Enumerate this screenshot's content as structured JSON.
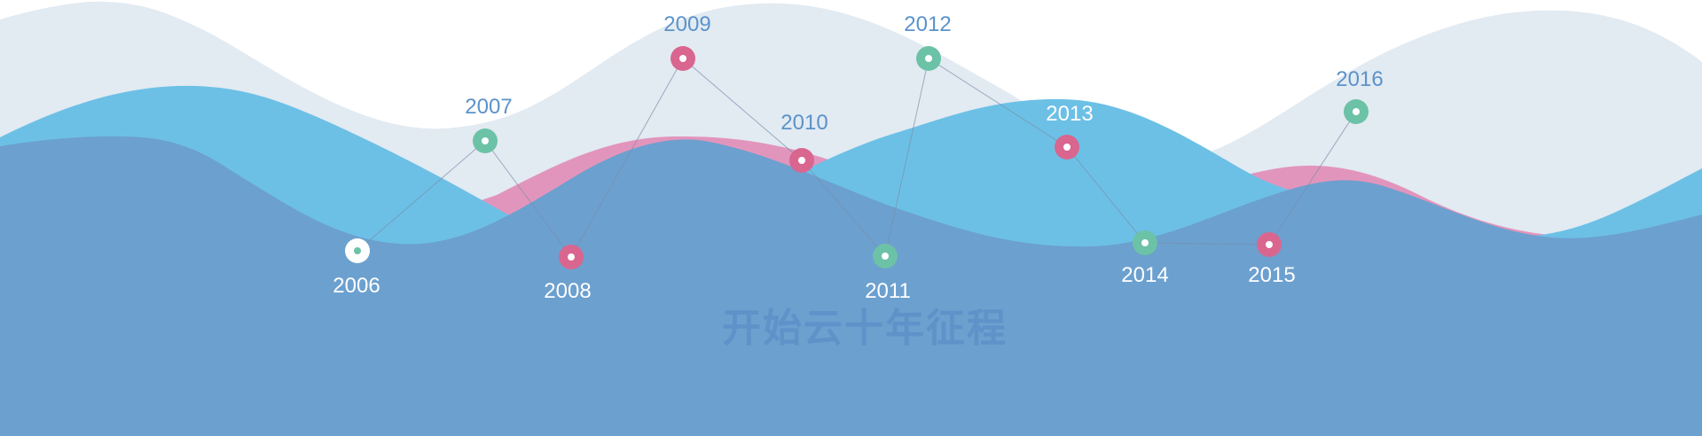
{
  "colors": {
    "background": "#ffffff",
    "wave_back": "#e2eaf2",
    "wave_cyan": "#6cc0e6",
    "wave_pink": "#e295bc",
    "wave_front": "#6ca0cf",
    "marker_green": "#6cc2a6",
    "marker_pink": "#d9668f",
    "marker_white": "#ffffff",
    "connector": "#7a8fa8",
    "label_on_light": "#5b93c9",
    "label_on_dark": "#ffffff"
  },
  "watermark": "开始云十年征程",
  "milestones": [
    {
      "year": "2006",
      "marker": "white-ring-icon",
      "color": "white"
    },
    {
      "year": "2007",
      "marker": "green-ring-icon",
      "color": "green"
    },
    {
      "year": "2008",
      "marker": "pink-ring-icon",
      "color": "pink"
    },
    {
      "year": "2009",
      "marker": "pink-ring-icon",
      "color": "pink"
    },
    {
      "year": "2010",
      "marker": "pink-ring-icon",
      "color": "pink"
    },
    {
      "year": "2011",
      "marker": "green-ring-icon",
      "color": "green"
    },
    {
      "year": "2012",
      "marker": "green-ring-icon",
      "color": "green"
    },
    {
      "year": "2013",
      "marker": "pink-ring-icon",
      "color": "pink"
    },
    {
      "year": "2014",
      "marker": "green-ring-icon",
      "color": "green"
    },
    {
      "year": "2015",
      "marker": "pink-ring-icon",
      "color": "pink"
    },
    {
      "year": "2016",
      "marker": "green-ring-icon",
      "color": "green"
    }
  ]
}
